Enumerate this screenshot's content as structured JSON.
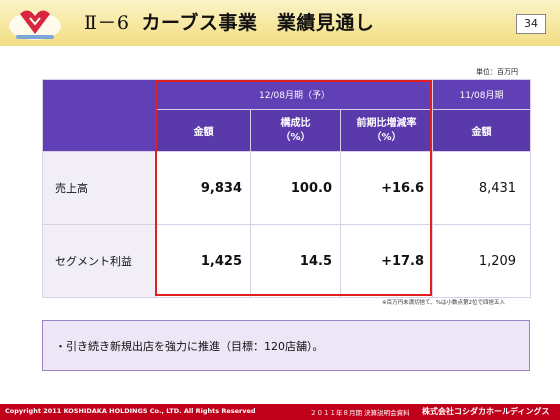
{
  "slide": {
    "number_label": "Ⅱ－6",
    "title": "カーブス事業　業績見通し",
    "page_number": "34"
  },
  "unit_note": "単位：百万円",
  "table": {
    "forecast_period": "12/08月期（予）",
    "prior_period": "11/08月期",
    "columns": {
      "amount": "金額",
      "composition": "構成比\n（%）",
      "yoy": "前期比増減率\n（%）",
      "prior_amount": "金額"
    },
    "rows": [
      {
        "label": "売上高",
        "amount": "9,834",
        "composition": "100.0",
        "yoy": "+16.6",
        "prior_amount": "8,431"
      },
      {
        "label": "セグメント利益",
        "amount": "1,425",
        "composition": "14.5",
        "yoy": "+17.8",
        "prior_amount": "1,209"
      }
    ]
  },
  "footnote": "※百万円未満切捨て、%は小数点第2位で四捨五入",
  "bullet": "・引き続き新規出店を強力に推進（目標：120店舗）。",
  "footer": {
    "copyright": "Copyright 2011 KOSHIDAKA HOLDINGS Co., LTD. All Rights Reserved",
    "event": "２０１１年８月期 決算説明会資料",
    "company": "株式会社コシダカホールディングス"
  },
  "colors": {
    "header_purple": "#6040b4",
    "highlight_red": "#e02020",
    "footer_red": "#c0001a",
    "title_band": "#f6e69c"
  }
}
